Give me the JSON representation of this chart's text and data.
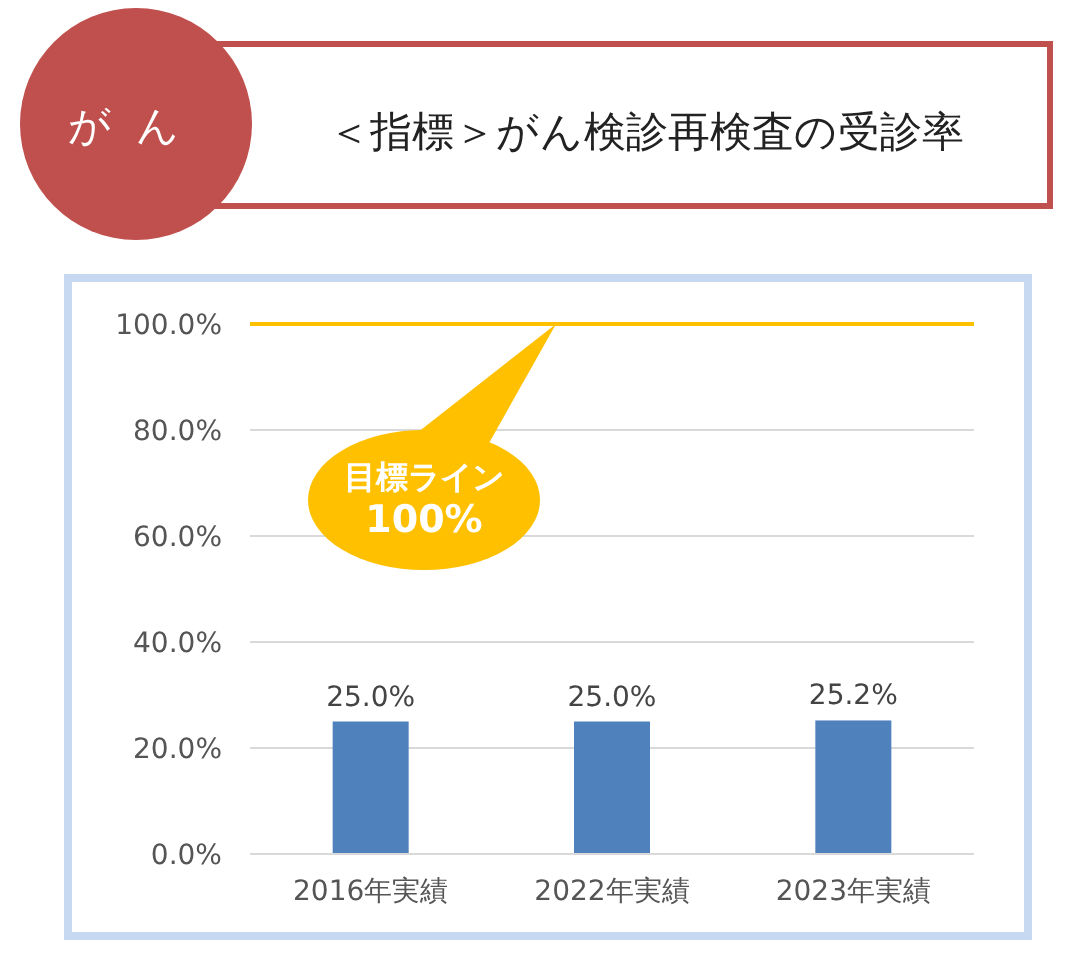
{
  "chart_data": {
    "type": "bar",
    "title": "＜指標＞がん検診再検査の受診率",
    "subtitle": "がん",
    "categories": [
      "2016年実績",
      "2022年実績",
      "2023年実績"
    ],
    "values": [
      25.0,
      25.0,
      25.2
    ],
    "value_labels": [
      "25.0%",
      "25.0%",
      "25.2%"
    ],
    "color": "#4f81bd",
    "ylim": [
      0,
      100
    ],
    "yticks": [
      {
        "value": 0,
        "label": "0.0%"
      },
      {
        "value": 20,
        "label": "20.0%"
      },
      {
        "value": 40,
        "label": "40.0%"
      },
      {
        "value": 60,
        "label": "60.0%"
      },
      {
        "value": 80,
        "label": "80.0%"
      },
      {
        "value": 100,
        "label": "100.0%"
      }
    ],
    "grid": "y",
    "ref_lines": [
      {
        "axis": "y",
        "value": 100,
        "color": "#ffc000"
      }
    ],
    "annotations": [
      "目標ライン 100%"
    ]
  }
}
